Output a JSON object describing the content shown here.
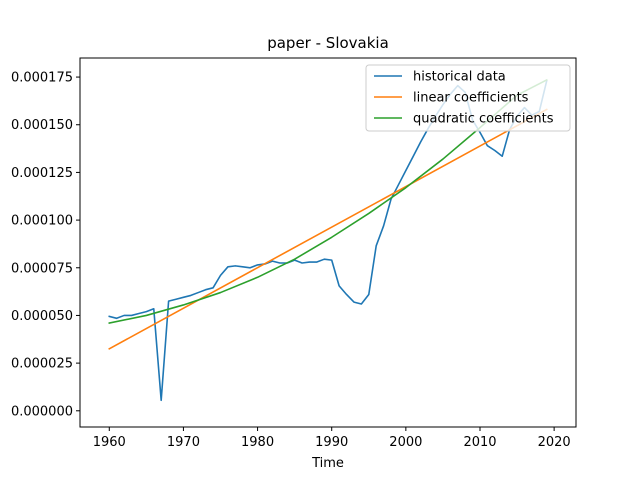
{
  "chart_data": {
    "type": "line",
    "title": "paper - Slovakia",
    "xlabel": "Time",
    "ylabel": "",
    "xlim": [
      1956.05,
      2022.95
    ],
    "ylim": [
      -8.5e-06,
      0.000185
    ],
    "xticks": [
      1960,
      1970,
      1980,
      1990,
      2000,
      2010,
      2020
    ],
    "yticks": [
      0.0,
      2.5e-05,
      5e-05,
      7.5e-05,
      0.0001,
      0.000125,
      0.00015,
      0.000175
    ],
    "xtick_labels": [
      "1960",
      "1970",
      "1980",
      "1990",
      "2000",
      "2010",
      "2020"
    ],
    "ytick_labels": [
      "0.000000",
      "0.000025",
      "0.000050",
      "0.000075",
      "0.000100",
      "0.000125",
      "0.000150",
      "0.000175"
    ],
    "legend_position": "top-right",
    "grid": false,
    "series": [
      {
        "name": "historical data",
        "color": "#1f77b4",
        "x": [
          1960,
          1961,
          1962,
          1963,
          1964,
          1965,
          1966,
          1967,
          1968,
          1969,
          1970,
          1971,
          1972,
          1973,
          1974,
          1975,
          1976,
          1977,
          1978,
          1979,
          1980,
          1981,
          1982,
          1983,
          1984,
          1985,
          1986,
          1987,
          1988,
          1989,
          1990,
          1991,
          1992,
          1993,
          1994,
          1995,
          1996,
          1997,
          1998,
          1999,
          2000,
          2001,
          2002,
          2003,
          2004,
          2005,
          2006,
          2007,
          2008,
          2009,
          2010,
          2011,
          2012,
          2013,
          2014,
          2015,
          2016,
          2017,
          2018,
          2019
        ],
        "y": [
          4.95e-05,
          4.85e-05,
          5e-05,
          5e-05,
          5.1e-05,
          5.2e-05,
          5.35e-05,
          5.5e-06,
          5.75e-05,
          5.85e-05,
          5.95e-05,
          6.05e-05,
          6.2e-05,
          6.35e-05,
          6.45e-05,
          7.1e-05,
          7.55e-05,
          7.6e-05,
          7.55e-05,
          7.5e-05,
          7.65e-05,
          7.7e-05,
          7.85e-05,
          7.75e-05,
          7.75e-05,
          7.9e-05,
          7.75e-05,
          7.8e-05,
          7.8e-05,
          7.95e-05,
          7.9e-05,
          6.55e-05,
          6.1e-05,
          5.7e-05,
          5.6e-05,
          6.1e-05,
          8.65e-05,
          9.7e-05,
          0.000111,
          0.0001185,
          0.000126,
          0.0001335,
          0.000141,
          0.000148,
          0.0001545,
          0.0001605,
          0.000166,
          0.0001705,
          0.000167,
          0.0001525,
          0.000146,
          0.000139,
          0.0001365,
          0.0001335,
          0.0001475,
          0.0001545,
          0.000159,
          0.000155,
          0.000157,
          0.000173
        ]
      },
      {
        "name": "linear coefficients",
        "color": "#ff7f0e",
        "x": [
          1960,
          2019
        ],
        "y": [
          3.25e-05,
          0.000158
        ]
      },
      {
        "name": "quadratic coefficients",
        "color": "#2ca02c",
        "x": [
          1960,
          1965,
          1970,
          1975,
          1980,
          1985,
          1990,
          1995,
          2000,
          2005,
          2010,
          2015,
          2019
        ],
        "y": [
          4.6e-05,
          5e-05,
          5.55e-05,
          6.2e-05,
          7e-05,
          7.95e-05,
          9.1e-05,
          0.0001035,
          0.000117,
          0.000132,
          0.0001485,
          0.0001655,
          0.0001735
        ]
      }
    ]
  }
}
